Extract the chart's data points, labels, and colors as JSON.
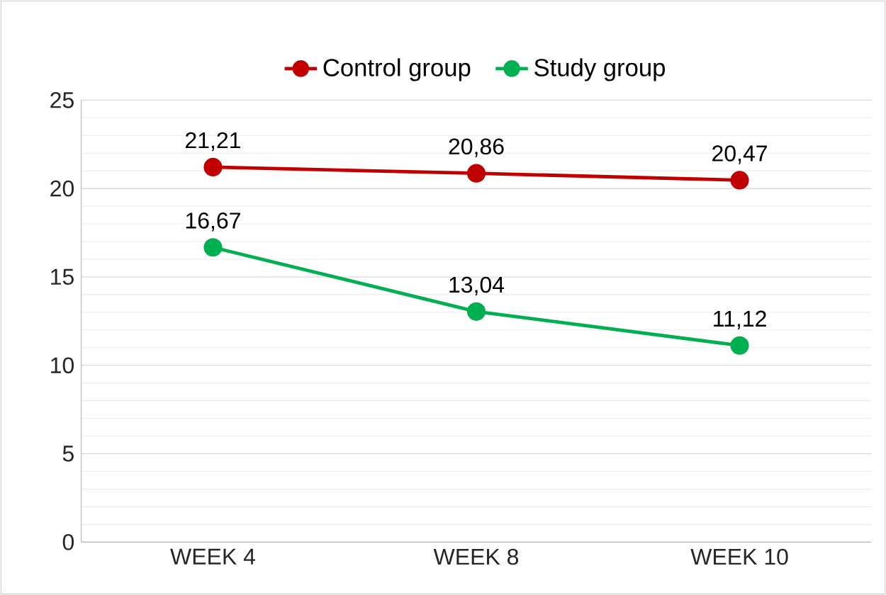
{
  "chart_data": {
    "type": "line",
    "categories": [
      "WEEK 4",
      "WEEK 8",
      "WEEK 10"
    ],
    "series": [
      {
        "name": "Control group",
        "color": "#c00000",
        "values": [
          21.21,
          20.86,
          20.47
        ],
        "value_labels": [
          "21,21",
          "20,86",
          "20,47"
        ]
      },
      {
        "name": "Study group",
        "color": "#00b050",
        "values": [
          16.67,
          13.04,
          11.12
        ],
        "value_labels": [
          "16,67",
          "13,04",
          "11,12"
        ]
      }
    ],
    "ylim": [
      0,
      25
    ],
    "yticks": [
      0,
      5,
      10,
      15,
      20,
      25
    ],
    "grid": "y",
    "legend": "top",
    "marker": "circle",
    "line_style": "solid"
  }
}
